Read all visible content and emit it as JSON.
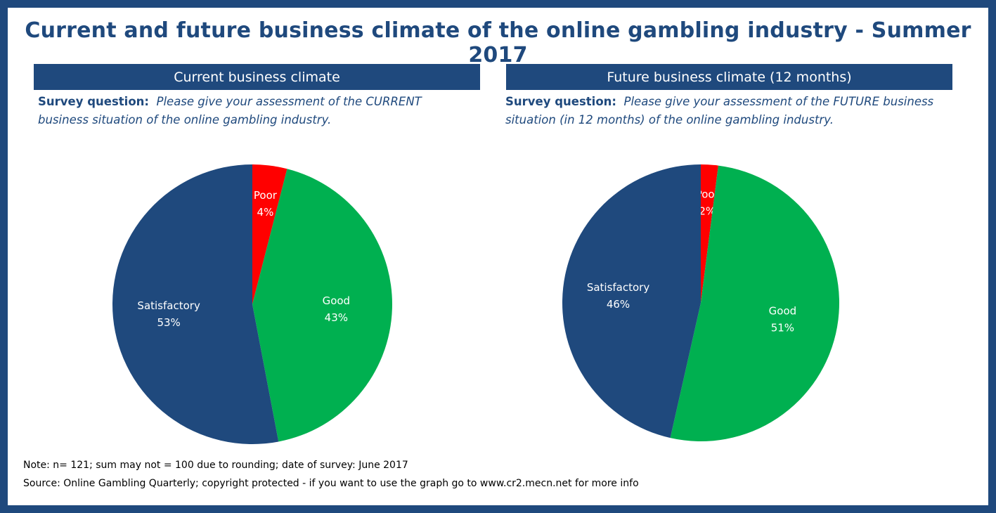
{
  "title": "Current and future business climate of the online gambling industry - Summer 2017",
  "colors": {
    "frame": "#1F497D",
    "satisfactory": "#1F497D",
    "good": "#00B050",
    "poor": "#FF0000",
    "label": "#ffffff"
  },
  "panels": [
    {
      "header": "Current  business climate",
      "question_label": "Survey question:",
      "question_text_line1": "Please give your assessment  of the CURRENT",
      "question_text_line2": "business situation of the online gambling industry."
    },
    {
      "header": "Future business climate (12 months)",
      "question_label": "Survey question:",
      "question_text_line1": "Please give your assessment  of the FUTURE  business",
      "question_text_line2": "situation (in 12 months) of the online gambling industry."
    }
  ],
  "chart_data": [
    {
      "type": "pie",
      "title": "Current  business climate",
      "slices": [
        {
          "label": "Poor",
          "value": 4,
          "display": "4%",
          "color": "#FF0000"
        },
        {
          "label": "Good",
          "value": 43,
          "display": "43%",
          "color": "#00B050"
        },
        {
          "label": "Satisfactory",
          "value": 53,
          "display": "53%",
          "color": "#1F497D"
        }
      ]
    },
    {
      "type": "pie",
      "title": "Future business climate (12 months)",
      "slices": [
        {
          "label": "Poor",
          "value": 2,
          "display": "2%",
          "color": "#FF0000"
        },
        {
          "label": "Good",
          "value": 51,
          "display": "51%",
          "color": "#00B050"
        },
        {
          "label": "Satisfactory",
          "value": 46,
          "display": "46%",
          "color": "#1F497D"
        }
      ]
    }
  ],
  "notes": {
    "note": "Note: n= 121; sum may not = 100 due to rounding; date of survey: June 2017",
    "source": "Source: Online Gambling Quarterly; copyright protected - if you want to use the graph go to www.cr2.mecn.net for more info"
  }
}
